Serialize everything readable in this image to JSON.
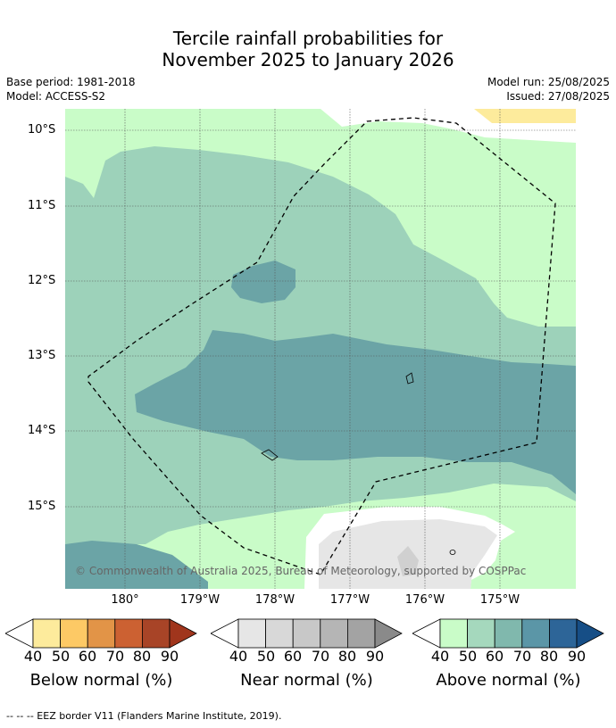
{
  "title_line1": "Tercile rainfall probabilities for",
  "title_line2": "November 2025 to January 2026",
  "base_period": "Base period: 1981-2018",
  "model": "Model: ACCESS-S2",
  "model_run": "Model run: 25/08/2025",
  "issued": "Issued: 27/08/2025",
  "lat_labels": [
    "10°S",
    "11°S",
    "12°S",
    "13°S",
    "14°S",
    "15°S"
  ],
  "lon_labels": [
    "180°",
    "179°W",
    "178°W",
    "177°W",
    "176°W",
    "175°W"
  ],
  "copyright": "© Commonwealth of Australia 2025, Bureau of Meteorology, supported by COSPPac",
  "legend": {
    "ticks": [
      "40",
      "50",
      "60",
      "70",
      "80",
      "90"
    ],
    "below": {
      "title": "Below normal (%)",
      "colors": [
        "#fdeb9c",
        "#fdc965",
        "#e29447",
        "#cc6132",
        "#a84427",
        "#a0351c"
      ]
    },
    "near": {
      "title": "Near normal (%)",
      "colors": [
        "#e6e6e6",
        "#d8d8d8",
        "#c8c8c8",
        "#b5b5b5",
        "#a3a3a3",
        "#8a8a8a"
      ]
    },
    "above": {
      "title": "Above normal (%)",
      "colors": [
        "#c9fcc8",
        "#a5d8bd",
        "#80b8ad",
        "#5b96a7",
        "#2d6598",
        "#164e86"
      ]
    }
  },
  "footer": "-- -- -- EEZ border V11 (Flanders Marine Institute, 2019)."
}
